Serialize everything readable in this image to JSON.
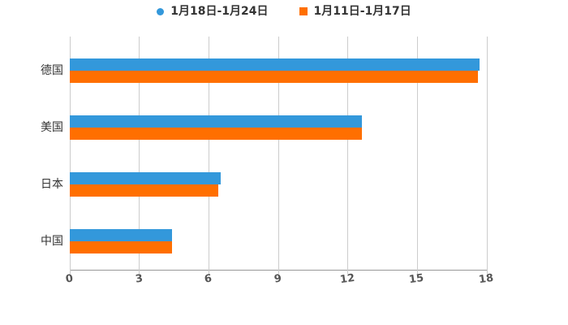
{
  "legend": {
    "items": [
      {
        "label": "1月18日-1月24日",
        "color": "#3398DB",
        "marker": "circle"
      },
      {
        "label": "1月11日-1月17日",
        "color": "#FF6F00",
        "marker": "square"
      }
    ]
  },
  "chart_data": {
    "type": "bar",
    "orientation": "horizontal",
    "title": "",
    "xlabel": "",
    "ylabel": "",
    "categories": [
      "德国",
      "美国",
      "日本",
      "中国"
    ],
    "series": [
      {
        "name": "1月18日-1月24日",
        "color": "#3398DB",
        "values": [
          17.7,
          12.6,
          6.5,
          4.4
        ]
      },
      {
        "name": "1月11日-1月17日",
        "color": "#FF6F00",
        "values": [
          17.6,
          12.6,
          6.4,
          4.4
        ]
      }
    ],
    "xlim": [
      0,
      18
    ],
    "xticks": [
      0,
      3,
      6,
      9,
      12,
      15,
      18
    ],
    "grid": true,
    "legend_position": "top"
  },
  "colors": {
    "blue_series": "#3398DB",
    "orange_series": "#FF6F00",
    "gridline": "#cccccc",
    "axis_line": "#999999",
    "tick_label": "#555555",
    "category_label": "#333333",
    "legend_text": "#333333",
    "background": "#ffffff"
  }
}
